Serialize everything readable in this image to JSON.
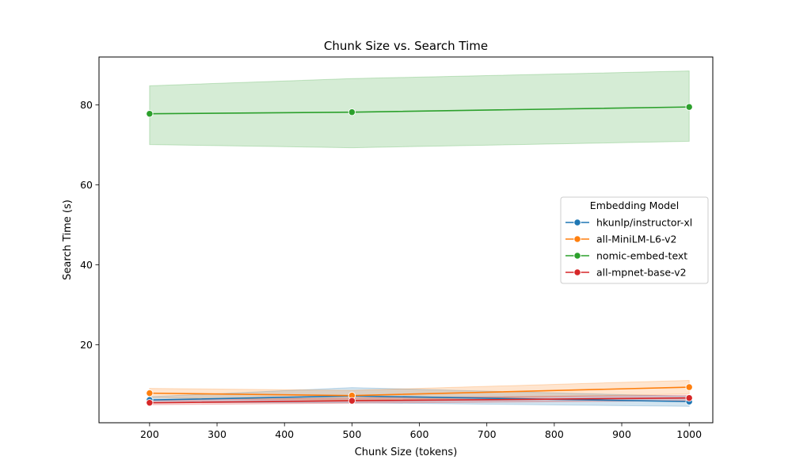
{
  "chart_data": {
    "type": "line",
    "title": "Chunk Size vs. Search Time",
    "xlabel": "Chunk Size (tokens)",
    "ylabel": "Search Time (s)",
    "xlim": [
      125,
      1035
    ],
    "ylim": [
      0.5,
      92
    ],
    "xticks": [
      200,
      300,
      400,
      500,
      600,
      700,
      800,
      900,
      1000
    ],
    "yticks": [
      20,
      40,
      60,
      80
    ],
    "x": [
      200,
      500,
      1000
    ],
    "legend": {
      "title": "Embedding Model",
      "placement": "center-right"
    },
    "series": [
      {
        "name": "hkunlp/instructor-xl",
        "color": "#1f77b4",
        "values": [
          6.2,
          7.2,
          5.8
        ],
        "ci_low": [
          5.6,
          5.5,
          4.6
        ],
        "ci_high": [
          7.0,
          9.3,
          7.1
        ]
      },
      {
        "name": "all-MiniLM-L6-v2",
        "color": "#ff7f0e",
        "values": [
          7.9,
          7.3,
          9.4
        ],
        "ci_low": [
          6.8,
          6.1,
          7.7
        ],
        "ci_high": [
          9.1,
          8.6,
          11.1
        ]
      },
      {
        "name": "nomic-embed-text",
        "color": "#2ca02c",
        "values": [
          77.8,
          78.2,
          79.5
        ],
        "ci_low": [
          70.1,
          69.3,
          70.9
        ],
        "ci_high": [
          84.8,
          86.6,
          88.5
        ]
      },
      {
        "name": "all-mpnet-base-v2",
        "color": "#d62728",
        "values": [
          5.5,
          6.0,
          6.7
        ],
        "ci_low": [
          5.0,
          5.4,
          6.0
        ],
        "ci_high": [
          6.1,
          6.7,
          7.4
        ]
      }
    ]
  }
}
